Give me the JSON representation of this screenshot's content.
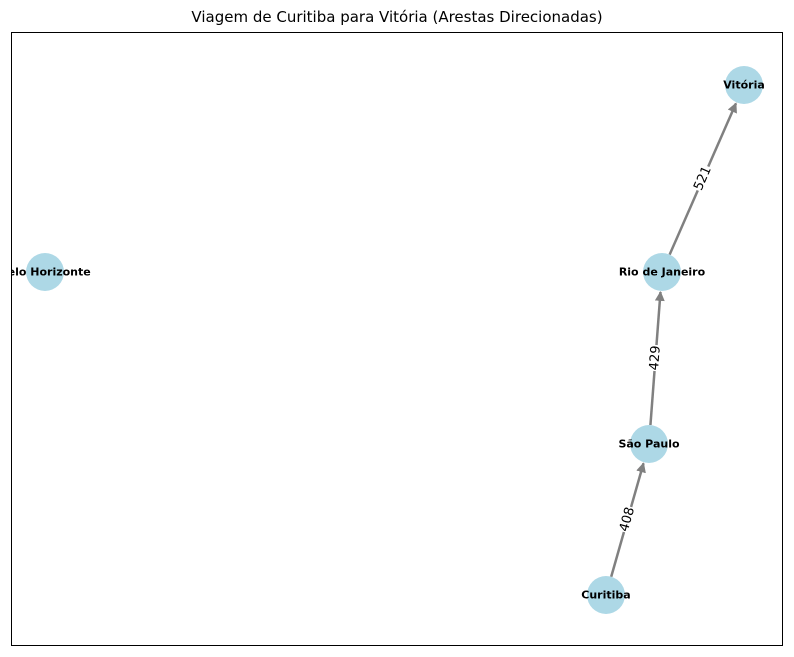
{
  "title": "Viagem de Curitiba para Vitória (Arestas Direcionadas)",
  "node_color": "#add8e6",
  "edge_color": "#808080",
  "nodes": [
    {
      "id": "vitoria",
      "label": "Vitória"
    },
    {
      "id": "bh",
      "label": "Belo Horizonte"
    },
    {
      "id": "rio",
      "label": "Rio de Janeiro"
    },
    {
      "id": "sp",
      "label": "São Paulo"
    },
    {
      "id": "curitiba",
      "label": "Curitiba"
    }
  ],
  "edges": [
    {
      "from": "curitiba",
      "to": "sp",
      "label": "408"
    },
    {
      "from": "sp",
      "to": "rio",
      "label": "429"
    },
    {
      "from": "rio",
      "to": "vitoria",
      "label": "521"
    }
  ]
}
